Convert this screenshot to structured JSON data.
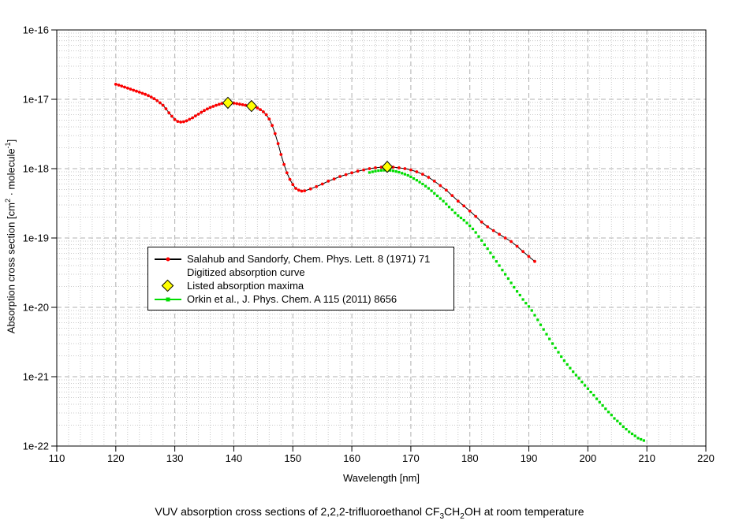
{
  "window": {
    "background": "#ffffff"
  },
  "colors": {
    "salahub_marker": "#ff0000",
    "salahub_line": "#000000",
    "orkin": "#00dd00",
    "maxima_fill": "#ffff00",
    "maxima_stroke": "#000000",
    "grid_major": "#b0b0b0",
    "grid_minor": "#c9c9c9",
    "axis": "#000000"
  },
  "axes": {
    "xlabel": "Wavelength [nm]",
    "ylabel_parts": {
      "pre": "Absorption cross section [cm",
      "sup1": "2",
      "mid": " · molecule",
      "sup2": "-1",
      "post": "]"
    }
  },
  "legend": {
    "rows": [
      {
        "marker": "black-line-red-dot",
        "label": "Salahub and Sandorfy, Chem. Phys. Lett. 8 (1971) 71"
      },
      {
        "marker": "none",
        "label": "Digitized absorption curve"
      },
      {
        "marker": "yellow-diamond",
        "label": "Listed absorption maxima"
      },
      {
        "marker": "green-line-green-square",
        "label": "Orkin et al., J. Phys. Chem. A 115 (2011) 8656"
      }
    ]
  },
  "caption_parts": {
    "pre": "VUV absorption cross sections of 2,2,2-trifluoroethanol CF",
    "sub1": "3",
    "mid": "CH",
    "sub2": "2",
    "post": "OH at room temperature"
  },
  "chart_data": {
    "type": "line",
    "title": "VUV absorption cross sections of 2,2,2-trifluoroethanol CF3CH2OH at room temperature",
    "xlabel": "Wavelength [nm]",
    "ylabel": "Absorption cross section [cm2 · molecule-1]",
    "grid": true,
    "legend_position": "center-left",
    "x_axis": {
      "min": 110,
      "max": 220,
      "major_step": 10,
      "minor_step": 2,
      "tick_labels": [
        "110",
        "120",
        "130",
        "140",
        "150",
        "160",
        "170",
        "180",
        "190",
        "200",
        "210",
        "220"
      ]
    },
    "y_axis": {
      "scale": "log",
      "min": 1e-22,
      "max": 1e-16,
      "tick_labels": [
        "1e-16",
        "1e-17",
        "1e-18",
        "1e-19",
        "1e-20",
        "1e-21",
        "1e-22"
      ]
    },
    "series": [
      {
        "id": "series-salahub",
        "name": "Salahub and Sandorfy, Chem. Phys. Lett. 8 (1971) 71 — Digitized absorption curve",
        "style": "line-dot",
        "color": "#ff0000",
        "line_color": "#000000",
        "line_width": 1,
        "x": [
          120,
          120.5,
          121,
          121.5,
          122,
          122.5,
          123,
          123.5,
          124,
          124.5,
          125,
          125.5,
          126,
          126.5,
          127,
          127.5,
          128,
          128.5,
          129,
          129.5,
          130,
          130.5,
          131,
          131.5,
          132,
          132.5,
          133,
          133.5,
          134,
          134.5,
          135,
          135.5,
          136,
          136.5,
          137,
          137.5,
          138,
          138.5,
          139,
          139.5,
          140,
          140.5,
          141,
          141.5,
          142,
          142.5,
          143,
          143.5,
          144,
          144.5,
          145,
          145.5,
          146,
          146.5,
          147,
          147.5,
          148,
          148.5,
          149,
          149.5,
          150,
          150.5,
          151,
          151.5,
          152,
          153,
          154,
          155,
          156,
          157,
          158,
          159,
          160,
          161,
          162,
          163,
          164,
          165,
          166,
          167,
          168,
          169,
          170,
          171,
          172,
          173,
          174,
          175,
          176,
          177,
          178,
          179,
          180,
          181,
          182,
          183,
          184,
          185,
          186,
          187,
          188,
          189,
          190,
          191
        ],
        "y": [
          1.65e-17,
          1.6e-17,
          1.55e-17,
          1.5e-17,
          1.45e-17,
          1.4e-17,
          1.35e-17,
          1.31e-17,
          1.27e-17,
          1.22e-17,
          1.18e-17,
          1.13e-17,
          1.08e-17,
          1.02e-17,
          9.6e-18,
          8.9e-18,
          8.2e-18,
          7.3e-18,
          6.4e-18,
          5.7e-18,
          5.1e-18,
          4.8e-18,
          4.7e-18,
          4.75e-18,
          4.9e-18,
          5.15e-18,
          5.4e-18,
          5.75e-18,
          6.1e-18,
          6.5e-18,
          6.9e-18,
          7.25e-18,
          7.6e-18,
          7.9e-18,
          8.2e-18,
          8.45e-18,
          8.7e-18,
          8.8e-18,
          8.9e-18,
          8.85e-18,
          8.8e-18,
          8.65e-18,
          8.5e-18,
          8.35e-18,
          8.2e-18,
          8.1e-18,
          8e-18,
          7.8e-18,
          7.5e-18,
          7.1e-18,
          6.6e-18,
          6e-18,
          5.2e-18,
          4.2e-18,
          3.2e-18,
          2.3e-18,
          1.6e-18,
          1.15e-18,
          8.7e-19,
          7e-19,
          5.9e-19,
          5.2e-19,
          4.9e-19,
          4.75e-19,
          4.8e-19,
          5.1e-19,
          5.5e-19,
          6e-19,
          6.6e-19,
          7.1e-19,
          7.7e-19,
          8.2e-19,
          8.7e-19,
          9.2e-19,
          9.6e-19,
          1e-18,
          1.03e-18,
          1.05e-18,
          1.06e-18,
          1.05e-18,
          1.03e-18,
          1e-18,
          9.6e-19,
          9e-19,
          8.3e-19,
          7.5e-19,
          6.6e-19,
          5.7e-19,
          4.9e-19,
          4.1e-19,
          3.4e-19,
          2.9e-19,
          2.45e-19,
          2.05e-19,
          1.7e-19,
          1.45e-19,
          1.28e-19,
          1.13e-19,
          1e-19,
          8.9e-20,
          7.6e-20,
          6.4e-20,
          5.4e-20,
          4.6e-20
        ]
      },
      {
        "id": "series-orkin",
        "name": "Orkin et al., J. Phys. Chem. A 115 (2011) 8656",
        "style": "square",
        "color": "#00dd00",
        "line_color": "none",
        "line_width": 0,
        "x": [
          163,
          163.5,
          164,
          164.5,
          165,
          165.5,
          166,
          166.5,
          167,
          167.5,
          168,
          168.5,
          169,
          169.5,
          170,
          170.5,
          171,
          171.5,
          172,
          172.5,
          173,
          173.5,
          174,
          174.5,
          175,
          175.5,
          176,
          176.5,
          177,
          177.5,
          178,
          178.5,
          179,
          179.5,
          180,
          180.5,
          181,
          181.5,
          182,
          182.5,
          183,
          183.5,
          184,
          184.5,
          185,
          185.5,
          186,
          186.5,
          187,
          187.5,
          188,
          188.5,
          189,
          189.5,
          190,
          190.5,
          191,
          191.5,
          192,
          192.5,
          193,
          193.5,
          194,
          194.5,
          195,
          195.5,
          196,
          196.5,
          197,
          197.5,
          198,
          198.5,
          199,
          199.5,
          200,
          200.5,
          201,
          201.5,
          202,
          202.5,
          203,
          203.5,
          204,
          204.5,
          205,
          205.5,
          206,
          206.5,
          207,
          207.5,
          208,
          208.5,
          209,
          209.5
        ],
        "y": [
          8.8e-19,
          9e-19,
          9.2e-19,
          9.35e-19,
          9.45e-19,
          9.5e-19,
          9.5e-19,
          9.45e-19,
          9.3e-19,
          9.1e-19,
          8.9e-19,
          8.6e-19,
          8.3e-19,
          8e-19,
          7.6e-19,
          7.2e-19,
          6.8e-19,
          6.4e-19,
          6e-19,
          5.6e-19,
          5.2e-19,
          4.8e-19,
          4.4e-19,
          4.05e-19,
          3.7e-19,
          3.4e-19,
          3.1e-19,
          2.8e-19,
          2.55e-19,
          2.3e-19,
          2.1e-19,
          1.95e-19,
          1.8e-19,
          1.65e-19,
          1.5e-19,
          1.35e-19,
          1.2e-19,
          1.05e-19,
          9.2e-20,
          8e-20,
          7e-20,
          6.1e-20,
          5.3e-20,
          4.6e-20,
          4e-20,
          3.45e-20,
          3e-20,
          2.6e-20,
          2.25e-20,
          1.95e-20,
          1.7e-20,
          1.5e-20,
          1.3e-20,
          1.15e-20,
          1.03e-20,
          9e-21,
          7.7e-21,
          6.6e-21,
          5.6e-21,
          4.8e-21,
          4.1e-21,
          3.5e-21,
          3e-21,
          2.6e-21,
          2.25e-21,
          1.95e-21,
          1.7e-21,
          1.5e-21,
          1.33e-21,
          1.18e-21,
          1.05e-21,
          9.5e-22,
          8.4e-22,
          7.5e-22,
          6.7e-22,
          6e-22,
          5.4e-22,
          4.8e-22,
          4.3e-22,
          3.85e-22,
          3.45e-22,
          3.1e-22,
          2.8e-22,
          2.5e-22,
          2.3e-22,
          2.1e-22,
          1.9e-22,
          1.75e-22,
          1.6e-22,
          1.5e-22,
          1.4e-22,
          1.3e-22,
          1.25e-22,
          1.2e-22
        ]
      },
      {
        "id": "series-maxima",
        "name": "Listed absorption maxima",
        "style": "diamond",
        "color": "#ffff00",
        "line_color": "#000000",
        "line_width": 0,
        "x": [
          139,
          143,
          166
        ],
        "y": [
          8.9e-18,
          8e-18,
          1.06e-18
        ]
      }
    ]
  }
}
